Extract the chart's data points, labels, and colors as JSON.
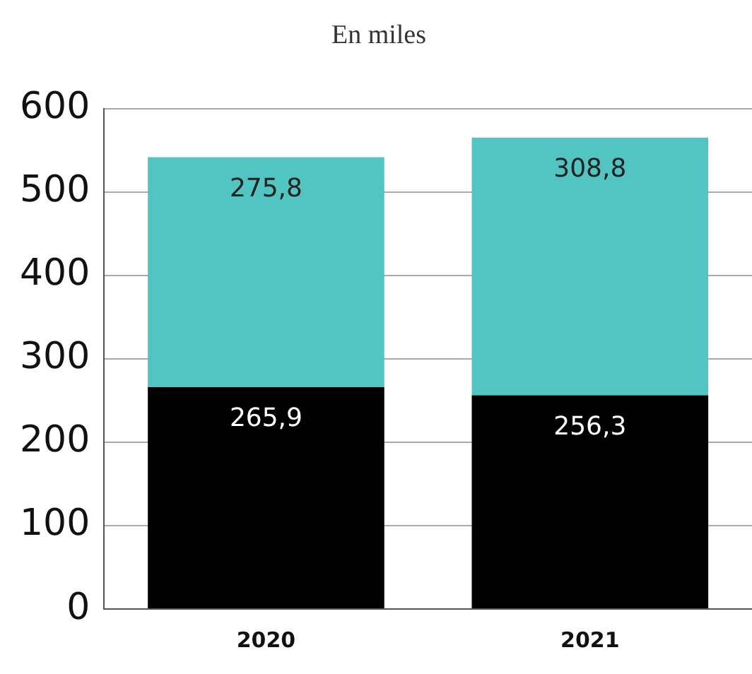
{
  "chart_data": {
    "type": "bar",
    "title": "En miles",
    "categories": [
      "2020",
      "2021"
    ],
    "stacked": true,
    "series": [
      {
        "color": "#000000",
        "values": [
          265.9,
          256.3
        ],
        "value_labels": [
          "265,9",
          "256,3"
        ]
      },
      {
        "color": "#52c4c1",
        "values": [
          275.8,
          308.8
        ],
        "value_labels": [
          "275,8",
          "308,8"
        ]
      }
    ],
    "ylim": [
      0,
      600
    ],
    "yticks": [
      0,
      100,
      200,
      300,
      400,
      500,
      600
    ],
    "grid": "y",
    "legend": false
  }
}
